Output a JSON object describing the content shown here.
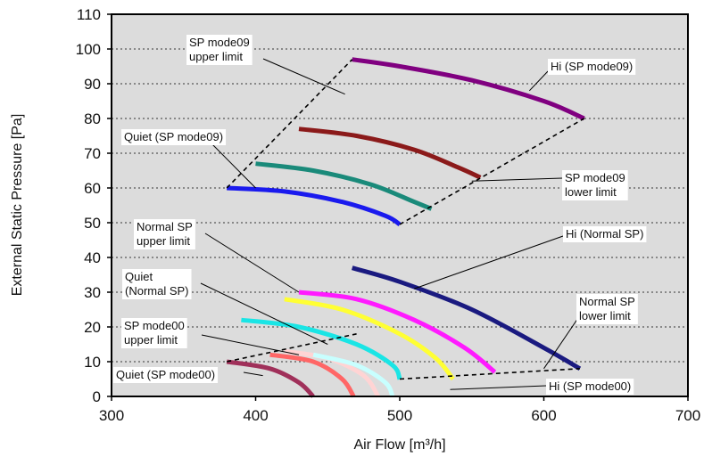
{
  "chart_data": {
    "type": "line",
    "xlabel": "Air Flow [m³/h]",
    "ylabel": "External Static Pressure [Pa]",
    "xlim": [
      300,
      700
    ],
    "ylim": [
      0,
      110
    ],
    "xticks": [
      300,
      400,
      500,
      600,
      700
    ],
    "yticks": [
      0,
      10,
      20,
      30,
      40,
      50,
      60,
      70,
      80,
      90,
      100,
      110
    ],
    "grid": "horizontal dashed",
    "colors": {
      "plot_bg": "#dcdcdc",
      "limit_line": "#000000"
    },
    "series": [
      {
        "color": "#800080",
        "points": [
          [
            467,
            97
          ],
          [
            500,
            95
          ],
          [
            550,
            91
          ],
          [
            600,
            85
          ],
          [
            628,
            80
          ]
        ]
      },
      {
        "color": "#8b1a1a",
        "points": [
          [
            430,
            77
          ],
          [
            470,
            75
          ],
          [
            510,
            71
          ],
          [
            540,
            66
          ],
          [
            556,
            63
          ]
        ]
      },
      {
        "color": "#1a8a7a",
        "points": [
          [
            400,
            67
          ],
          [
            440,
            65
          ],
          [
            480,
            61
          ],
          [
            510,
            56
          ],
          [
            522,
            54
          ]
        ]
      },
      {
        "color": "#1a1aee",
        "points": [
          [
            380,
            60
          ],
          [
            420,
            59
          ],
          [
            460,
            56
          ],
          [
            490,
            52
          ],
          [
            500,
            49.5
          ]
        ]
      },
      {
        "color": "#1a1a80",
        "points": [
          [
            467,
            37
          ],
          [
            500,
            33
          ],
          [
            550,
            25
          ],
          [
            600,
            14
          ],
          [
            625,
            8
          ]
        ]
      },
      {
        "color": "#ff1aff",
        "points": [
          [
            430,
            30
          ],
          [
            470,
            28
          ],
          [
            510,
            22
          ],
          [
            545,
            14
          ],
          [
            566,
            7
          ]
        ]
      },
      {
        "color": "#ffff33",
        "points": [
          [
            420,
            28
          ],
          [
            460,
            25
          ],
          [
            500,
            18
          ],
          [
            525,
            11
          ],
          [
            537,
            5
          ]
        ]
      },
      {
        "color": "#1ae5e5",
        "points": [
          [
            390,
            22
          ],
          [
            430,
            20
          ],
          [
            470,
            15
          ],
          [
            495,
            9
          ],
          [
            500,
            5
          ]
        ]
      },
      {
        "color": "#ffd4d4",
        "points": [
          [
            420,
            13
          ],
          [
            450,
            11
          ],
          [
            475,
            6
          ],
          [
            485,
            0
          ]
        ]
      },
      {
        "color": "#ff6666",
        "points": [
          [
            410,
            12
          ],
          [
            440,
            10
          ],
          [
            460,
            5
          ],
          [
            468,
            0
          ]
        ]
      },
      {
        "color": "#a0305a",
        "points": [
          [
            380,
            10
          ],
          [
            410,
            8
          ],
          [
            430,
            4
          ],
          [
            440,
            0
          ]
        ]
      },
      {
        "color": "#c8ffff",
        "points": [
          [
            440,
            12
          ],
          [
            470,
            9
          ],
          [
            490,
            4
          ],
          [
            495,
            0
          ]
        ]
      }
    ],
    "limit_lines": [
      {
        "style": "dashed",
        "points": [
          [
            380,
            60
          ],
          [
            467,
            97
          ]
        ]
      },
      {
        "style": "dashed",
        "points": [
          [
            500,
            49.5
          ],
          [
            628,
            80
          ]
        ]
      },
      {
        "style": "dashed",
        "points": [
          [
            380,
            10
          ],
          [
            470,
            18
          ]
        ]
      },
      {
        "style": "dashed",
        "points": [
          [
            500,
            5
          ],
          [
            625,
            8
          ]
        ]
      }
    ],
    "annotations": [
      {
        "id": "sp09-upper",
        "lines": [
          "SP mode09",
          "upper limit"
        ],
        "target": [
          462,
          87
        ]
      },
      {
        "id": "hi-sp09",
        "lines": [
          "Hi (SP mode09)"
        ],
        "target": [
          590,
          88
        ]
      },
      {
        "id": "quiet-sp09",
        "lines": [
          "Quiet (SP mode09)"
        ],
        "target": [
          400,
          60
        ]
      },
      {
        "id": "sp09-lower",
        "lines": [
          "SP mode09",
          "lower limit"
        ],
        "target": [
          550,
          62
        ]
      },
      {
        "id": "normal-upper",
        "lines": [
          "Normal SP",
          "upper limit"
        ],
        "target": [
          430,
          30
        ]
      },
      {
        "id": "hi-normal",
        "lines": [
          "Hi (Normal SP)"
        ],
        "target": [
          510,
          31
        ]
      },
      {
        "id": "quiet-normal",
        "lines": [
          "Quiet",
          "(Normal SP)"
        ],
        "target": [
          450,
          15
        ]
      },
      {
        "id": "normal-lower",
        "lines": [
          "Normal SP",
          "lower limit"
        ],
        "target": [
          600,
          8
        ]
      },
      {
        "id": "sp00-upper",
        "lines": [
          "SP mode00",
          "upper limit"
        ],
        "target": [
          430,
          12
        ]
      },
      {
        "id": "quiet-sp00",
        "lines": [
          "Quiet (SP mode00)"
        ],
        "target": [
          405,
          6
        ]
      },
      {
        "id": "hi-sp00",
        "lines": [
          "Hi (SP mode00)"
        ],
        "target": [
          535,
          2
        ]
      }
    ]
  }
}
